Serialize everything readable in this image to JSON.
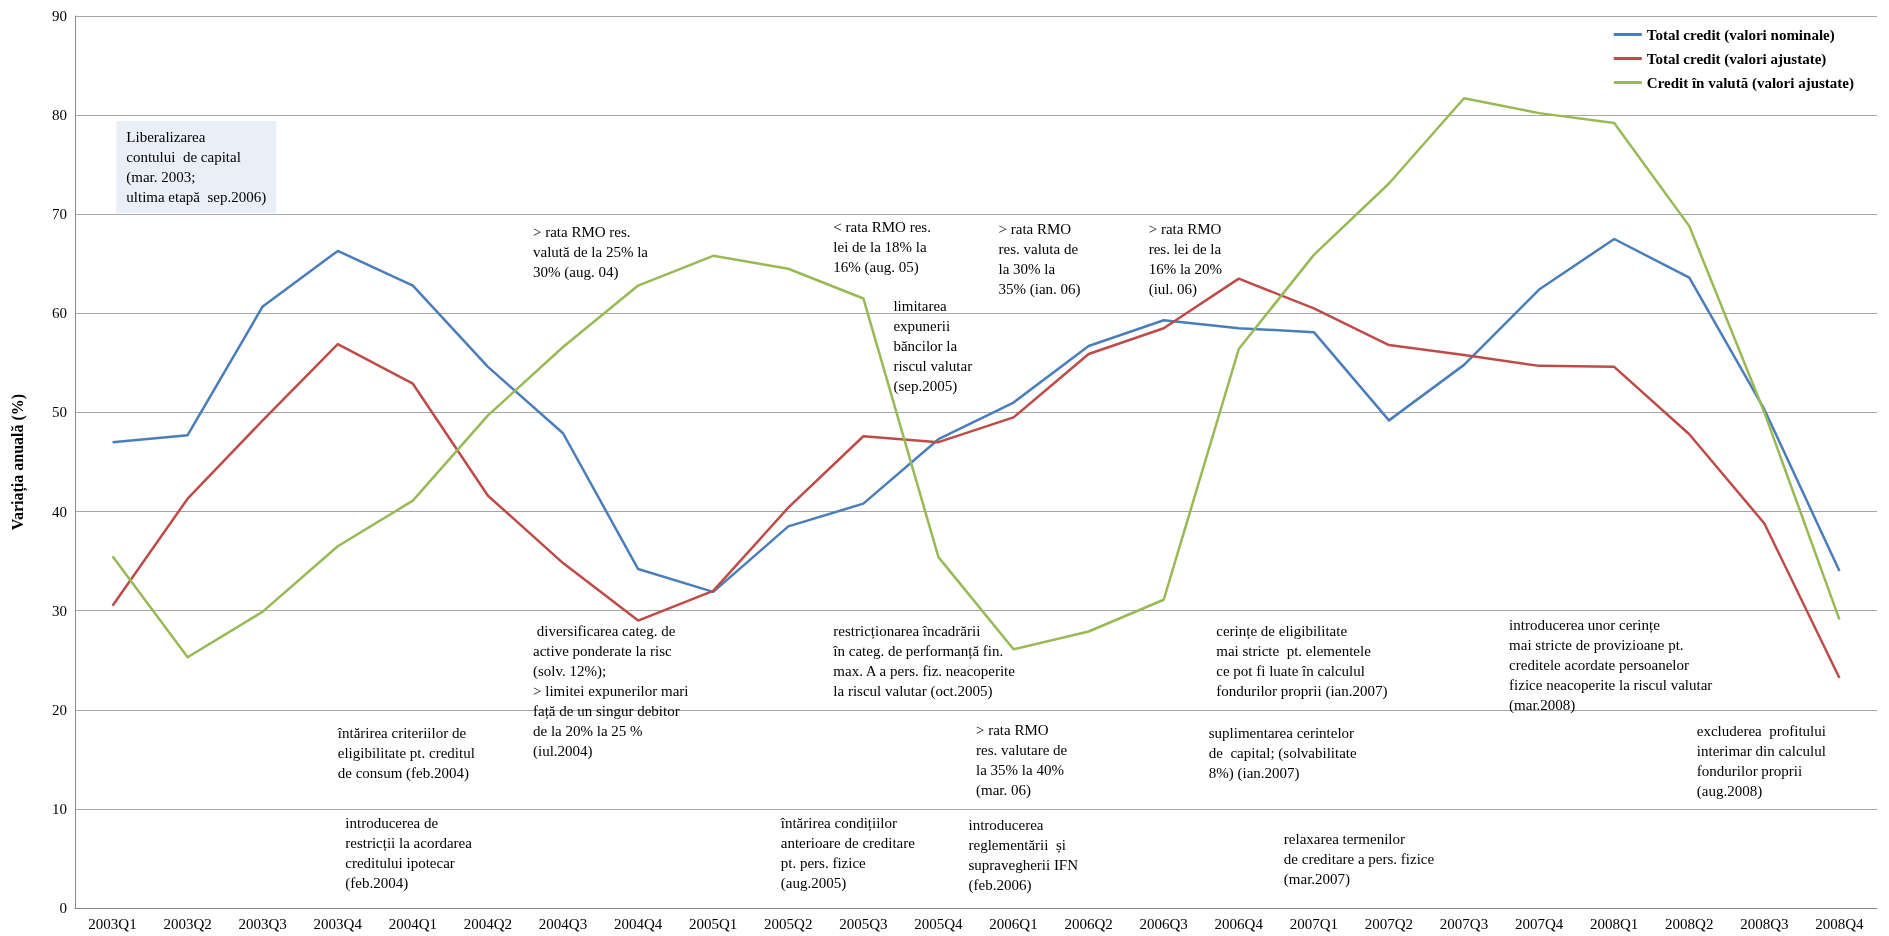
{
  "chart_data": {
    "type": "line",
    "ylabel": "Variația anuală (%)",
    "categories": [
      "2003Q1",
      "2003Q2",
      "2003Q3",
      "2003Q4",
      "2004Q1",
      "2004Q2",
      "2004Q3",
      "2004Q4",
      "2005Q1",
      "2005Q2",
      "2005Q3",
      "2005Q4",
      "2006Q1",
      "2006Q2",
      "2006Q3",
      "2006Q4",
      "2007Q1",
      "2007Q2",
      "2007Q3",
      "2007Q4",
      "2008Q1",
      "2008Q2",
      "2008Q3",
      "2008Q4"
    ],
    "series": [
      {
        "name": "Total credit (valori nominale)",
        "color": "#4a7ebb",
        "values": [
          47.0,
          47.7,
          60.7,
          66.3,
          62.8,
          54.6,
          47.9,
          34.2,
          31.9,
          38.5,
          40.8,
          47.3,
          51.0,
          56.7,
          59.3,
          58.5,
          58.1,
          49.2,
          54.8,
          62.4,
          67.5,
          63.6,
          50.3,
          34.0
        ]
      },
      {
        "name": "Total credit (valori ajustate)",
        "color": "#be4b48",
        "values": [
          30.5,
          41.3,
          49.2,
          56.9,
          52.9,
          41.6,
          34.8,
          29.0,
          32.0,
          40.4,
          47.6,
          47.0,
          49.5,
          55.9,
          58.5,
          63.5,
          60.5,
          56.8,
          55.8,
          54.7,
          54.6,
          47.8,
          38.8,
          23.2
        ]
      },
      {
        "name": "Credit în valută (valori ajustate)",
        "color": "#98b954",
        "values": [
          35.5,
          25.3,
          29.9,
          36.5,
          41.1,
          49.7,
          56.6,
          62.8,
          65.8,
          64.5,
          61.5,
          35.4,
          26.1,
          27.9,
          31.1,
          56.4,
          65.9,
          73.1,
          81.7,
          80.2,
          79.2,
          68.8,
          50.0,
          29.1
        ]
      }
    ],
    "ylim": [
      0,
      90
    ],
    "yticks": [
      0,
      10,
      20,
      30,
      40,
      50,
      60,
      70,
      80,
      90
    ],
    "grid": "y",
    "legend": "top right",
    "marker": "none",
    "line_style": "solid",
    "annotations": [
      "Liberalizarea\ncontului  de capital\n(mar. 2003;\nultima etapă  sep.2006)",
      "> rata RMO res.\nvalută de la 25% la\n30% (aug. 04)",
      "< rata RMO res.\nlei de la 18% la\n16% (aug. 05)",
      "limitarea\nexpunerii\nbăncilor la\nriscul valutar\n(sep.2005)",
      "> rata RMO\nres. valuta de\nla 30% la\n35% (ian. 06)",
      "> rata RMO\nres. lei de la\n16% la 20%\n(iul. 06)",
      " diversificarea categ. de\nactive ponderate la risc\n(solv. 12%);\n> limitei expunerilor mari\nfață de un singur debitor\nde la 20% la 25 %\n(iul.2004)",
      "restricționarea încadrării\nîn categ. de performanță fin.\nmax. A a pers. fiz. neacoperite\nla riscul valutar (oct.2005)",
      "cerințe de eligibilitate\nmai stricte  pt. elementele\nce pot fi luate în calculul\nfondurilor proprii (ian.2007)",
      "introducerea unor cerințe\nmai stricte de provizioane pt.\ncreditele acordate persoanelor\nfizice neacoperite la riscul valutar\n(mar.2008)",
      "întărirea criteriilor de\neligibilitate pt. creditul\nde consum (feb.2004)",
      "> rata RMO\nres. valutare de\nla 35% la 40%\n(mar. 06)",
      "suplimentarea cerintelor\nde  capital; (solvabilitate\n8%) (ian.2007)",
      "excluderea  profitului\ninterimar din calculul\nfondurilor proprii\n(aug.2008)",
      "introducerea de\nrestricții la acordarea\ncreditului ipotecar\n(feb.2004)",
      "întărirea condițiilor\nanterioare de creditare\npt. pers. fizice\n(aug.2005)",
      "introducerea\nreglementării  și\nsupravegherii IFN\n(feb.2006)",
      "relaxarea termenilor\nde creditare a pers. fizice\n(mar.2007)"
    ]
  }
}
